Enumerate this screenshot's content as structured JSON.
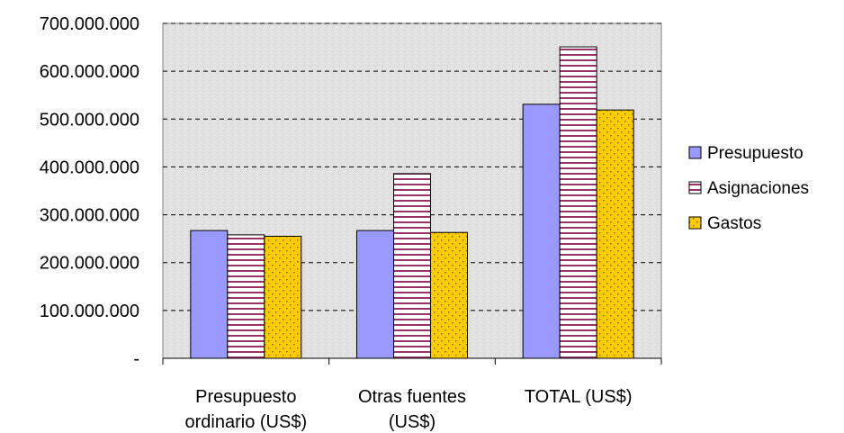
{
  "chart_data": {
    "type": "bar",
    "categories": [
      [
        "Presupuesto",
        "ordinario (US$)"
      ],
      [
        "Otras fuentes",
        "(US$)"
      ],
      [
        "TOTAL (US$)"
      ]
    ],
    "series": [
      {
        "name": "Presupuesto",
        "values": [
          267000000,
          267000000,
          531000000
        ],
        "color": "#9999ff",
        "pattern": "solid"
      },
      {
        "name": "Asignaciones",
        "values": [
          258000000,
          386000000,
          651000000
        ],
        "color": "#993366",
        "pattern": "horizontal-lines"
      },
      {
        "name": "Gastos",
        "values": [
          255000000,
          263000000,
          519000000
        ],
        "color": "#ffcc00",
        "pattern": "dots"
      }
    ],
    "yticks": [
      {
        "value": 0,
        "label": "-"
      },
      {
        "value": 100000000,
        "label": "100.000.000"
      },
      {
        "value": 200000000,
        "label": "200.000.000"
      },
      {
        "value": 300000000,
        "label": "300.000.000"
      },
      {
        "value": 400000000,
        "label": "400.000.000"
      },
      {
        "value": 500000000,
        "label": "500.000.000"
      },
      {
        "value": 600000000,
        "label": "600.000.000"
      },
      {
        "value": 700000000,
        "label": "700.000.000"
      }
    ],
    "ylim": [
      0,
      700000000
    ],
    "grid": true,
    "legend_position": "right",
    "plot_background": "#e0e0e0"
  }
}
